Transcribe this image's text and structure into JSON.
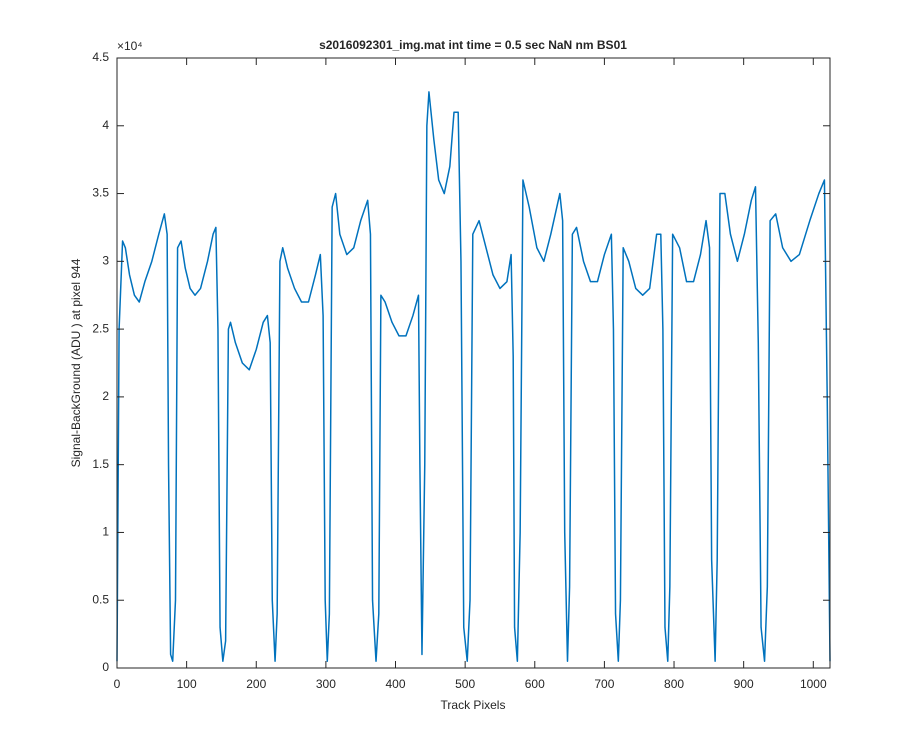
{
  "chart_data": {
    "type": "line",
    "title": "s2016092301_img.mat int time = 0.5 sec  NaN nm BS01",
    "xlabel": "Track Pixels",
    "ylabel": "Signal-BackGround (ADU ) at pixel 944",
    "y_exponent": "×10⁴",
    "color": "#0072bd",
    "xlim": [
      0,
      1024
    ],
    "ylim": [
      0,
      4.5
    ],
    "xticks": [
      0,
      100,
      200,
      300,
      400,
      500,
      600,
      700,
      800,
      900,
      1000
    ],
    "yticks": [
      0,
      0.5,
      1,
      1.5,
      2,
      2.5,
      3,
      3.5,
      4,
      4.5
    ],
    "x": [
      0,
      3,
      8,
      12,
      18,
      25,
      32,
      40,
      50,
      60,
      68,
      72,
      74,
      77,
      80,
      84,
      87,
      92,
      98,
      105,
      112,
      120,
      130,
      138,
      142,
      145,
      148,
      152,
      156,
      160,
      163,
      170,
      180,
      190,
      200,
      210,
      216,
      220,
      223,
      227,
      230,
      234,
      238,
      245,
      255,
      265,
      275,
      285,
      292,
      296,
      299,
      302,
      305,
      309,
      314,
      320,
      330,
      340,
      350,
      360,
      364,
      367,
      372,
      376,
      379,
      385,
      395,
      405,
      415,
      425,
      433,
      435,
      438,
      442,
      445,
      448,
      455,
      462,
      470,
      478,
      484,
      490,
      494,
      498,
      503,
      507,
      511,
      520,
      530,
      540,
      550,
      560,
      566,
      569,
      571,
      575,
      579,
      583,
      592,
      603,
      613,
      623,
      636,
      640,
      643,
      647,
      650,
      654,
      660,
      670,
      680,
      690,
      700,
      710,
      713,
      716,
      720,
      723,
      727,
      735,
      745,
      755,
      765,
      775,
      781,
      784,
      787,
      791,
      794,
      798,
      808,
      818,
      828,
      838,
      846,
      851,
      854,
      859,
      862,
      866,
      873,
      881,
      891,
      901,
      911,
      917,
      921,
      925,
      930,
      934,
      938,
      946,
      956,
      968,
      980,
      995,
      1008,
      1016,
      1020,
      1024
    ],
    "values": [
      0.05,
      2.5,
      3.15,
      3.1,
      2.9,
      2.75,
      2.7,
      2.85,
      3.0,
      3.2,
      3.35,
      3.2,
      1.5,
      0.1,
      0.05,
      0.5,
      3.1,
      3.15,
      2.95,
      2.8,
      2.75,
      2.8,
      3.0,
      3.2,
      3.25,
      2.5,
      0.3,
      0.05,
      0.2,
      2.5,
      2.55,
      2.4,
      2.25,
      2.2,
      2.35,
      2.55,
      2.6,
      2.4,
      0.5,
      0.05,
      0.4,
      3.0,
      3.1,
      2.95,
      2.8,
      2.7,
      2.7,
      2.9,
      3.05,
      2.6,
      0.5,
      0.05,
      0.4,
      3.4,
      3.5,
      3.2,
      3.05,
      3.1,
      3.3,
      3.45,
      3.2,
      0.5,
      0.05,
      0.4,
      2.75,
      2.7,
      2.55,
      2.45,
      2.45,
      2.6,
      2.75,
      1.5,
      0.1,
      1.5,
      4.0,
      4.25,
      3.9,
      3.6,
      3.5,
      3.7,
      4.1,
      4.1,
      3.0,
      0.3,
      0.05,
      0.5,
      3.2,
      3.3,
      3.1,
      2.9,
      2.8,
      2.85,
      3.05,
      2.3,
      0.3,
      0.05,
      1.0,
      3.6,
      3.4,
      3.1,
      3.0,
      3.2,
      3.5,
      3.3,
      1.0,
      0.05,
      0.6,
      3.2,
      3.25,
      3.0,
      2.85,
      2.85,
      3.05,
      3.2,
      2.5,
      0.4,
      0.05,
      0.5,
      3.1,
      3.0,
      2.8,
      2.75,
      2.8,
      3.2,
      3.2,
      2.5,
      0.3,
      0.05,
      0.6,
      3.2,
      3.1,
      2.85,
      2.85,
      3.05,
      3.3,
      3.1,
      0.8,
      0.05,
      0.8,
      3.5,
      3.5,
      3.2,
      3.0,
      3.2,
      3.45,
      3.55,
      2.4,
      0.3,
      0.05,
      0.6,
      3.3,
      3.35,
      3.1,
      3.0,
      3.05,
      3.3,
      3.5,
      3.6,
      2.0,
      0.05
    ]
  }
}
